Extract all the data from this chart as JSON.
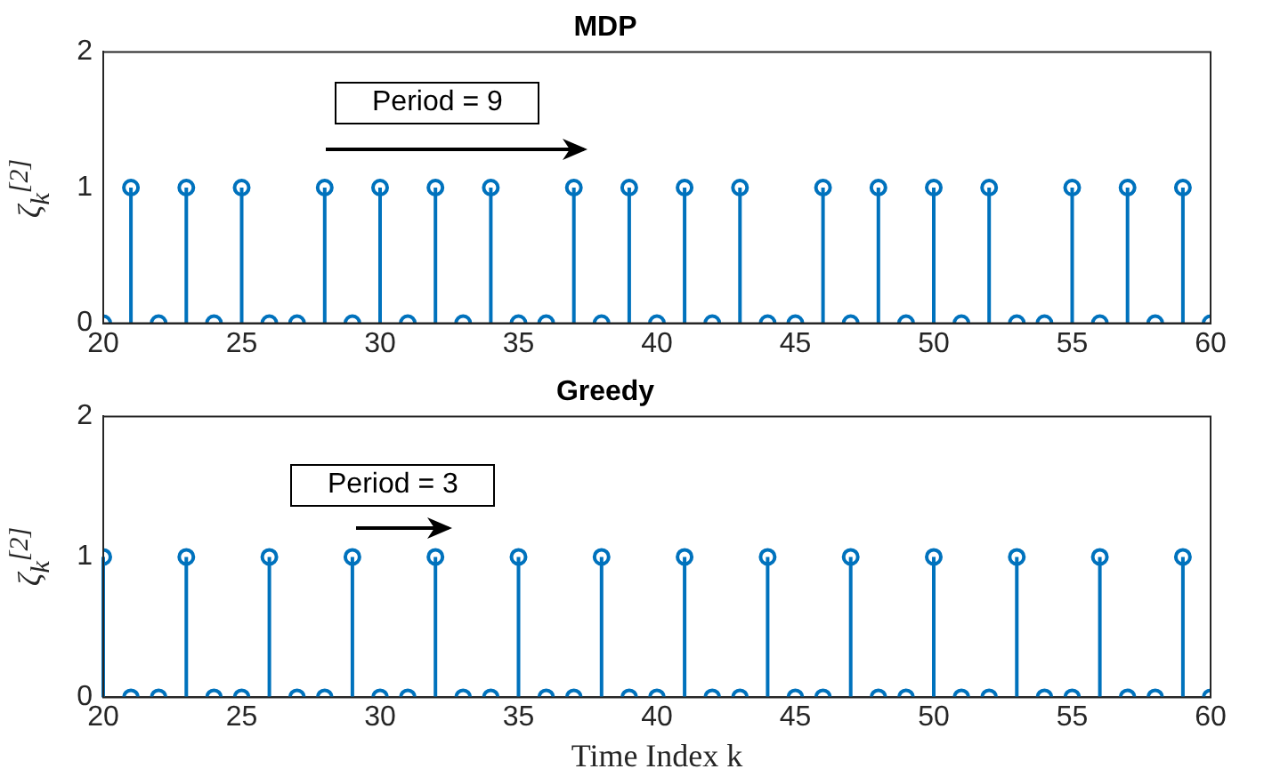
{
  "chart_data": [
    {
      "type": "lollipop",
      "title": "MDP",
      "ylabel": "ζ$_{k}$$^{[2]}$",
      "x": [
        20,
        21,
        22,
        23,
        24,
        25,
        26,
        27,
        28,
        29,
        30,
        31,
        32,
        33,
        34,
        35,
        36,
        37,
        38,
        39,
        40,
        41,
        42,
        43,
        44,
        45,
        46,
        47,
        48,
        49,
        50,
        51,
        52,
        53,
        54,
        55,
        56,
        57,
        58,
        59,
        60
      ],
      "series": [
        {
          "color": "#0072bd",
          "values": [
            0,
            1,
            0,
            1,
            0,
            1,
            0,
            0,
            1,
            0,
            1,
            0,
            1,
            0,
            1,
            0,
            0,
            1,
            0,
            1,
            0,
            1,
            0,
            1,
            0,
            0,
            1,
            0,
            1,
            0,
            1,
            0,
            1,
            0,
            0,
            1,
            0,
            1,
            0,
            1,
            0
          ]
        }
      ],
      "marker": "circle",
      "xlim": [
        20,
        60
      ],
      "xticks": [
        20,
        25,
        30,
        35,
        40,
        45,
        50,
        55,
        60
      ],
      "ylim": [
        0,
        2
      ],
      "yticks": [
        0,
        1,
        2
      ],
      "grid": false,
      "legend": false,
      "annotations": [
        "Period = 9"
      ]
    },
    {
      "type": "lollipop",
      "title": "Greedy",
      "xlabel": "Time Index k",
      "ylabel": "ζ$_{k}$$^{[2]}$",
      "x": [
        20,
        21,
        22,
        23,
        24,
        25,
        26,
        27,
        28,
        29,
        30,
        31,
        32,
        33,
        34,
        35,
        36,
        37,
        38,
        39,
        40,
        41,
        42,
        43,
        44,
        45,
        46,
        47,
        48,
        49,
        50,
        51,
        52,
        53,
        54,
        55,
        56,
        57,
        58,
        59,
        60
      ],
      "series": [
        {
          "color": "#0072bd",
          "values": [
            1,
            0,
            0,
            1,
            0,
            0,
            1,
            0,
            0,
            1,
            0,
            0,
            1,
            0,
            0,
            1,
            0,
            0,
            1,
            0,
            0,
            1,
            0,
            0,
            1,
            0,
            0,
            1,
            0,
            0,
            1,
            0,
            0,
            1,
            0,
            0,
            1,
            0,
            0,
            1,
            0
          ]
        }
      ],
      "marker": "circle",
      "xlim": [
        20,
        60
      ],
      "xticks": [
        20,
        25,
        30,
        35,
        40,
        45,
        50,
        55,
        60
      ],
      "ylim": [
        0,
        2
      ],
      "yticks": [
        0,
        1,
        2
      ],
      "grid": false,
      "legend": false,
      "annotations": [
        "Period = 3"
      ]
    }
  ]
}
